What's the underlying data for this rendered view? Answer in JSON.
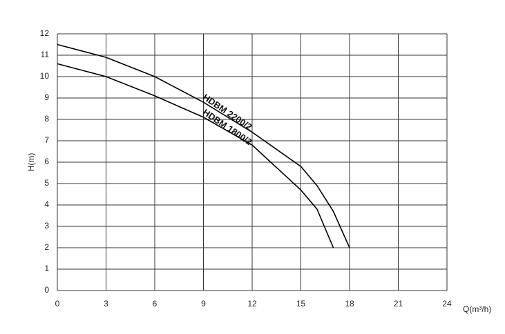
{
  "chart_data": {
    "type": "line",
    "x_label": "Q(m³/h)",
    "y_label": "H(m)",
    "series": [
      {
        "name": "HDBM 2200/2",
        "color": "#000000",
        "x": [
          0,
          3,
          6,
          9,
          12,
          15,
          16,
          17,
          18
        ],
        "values": [
          11.5,
          10.9,
          10.0,
          8.8,
          7.4,
          5.8,
          4.9,
          3.7,
          2.0
        ]
      },
      {
        "name": "HDBM 1800/2",
        "color": "#000000",
        "x": [
          0,
          3,
          6,
          9,
          12,
          15,
          16,
          17
        ],
        "values": [
          10.6,
          10.0,
          9.1,
          8.1,
          6.8,
          4.7,
          3.8,
          2.0
        ]
      }
    ],
    "xlim": [
      0,
      24
    ],
    "xticks": [
      0,
      3,
      6,
      9,
      12,
      15,
      18,
      21,
      24
    ],
    "ylim": [
      0,
      12
    ],
    "yticks": [
      0,
      1,
      2,
      3,
      4,
      5,
      6,
      7,
      8,
      9,
      10,
      11,
      12
    ],
    "grid": true
  }
}
